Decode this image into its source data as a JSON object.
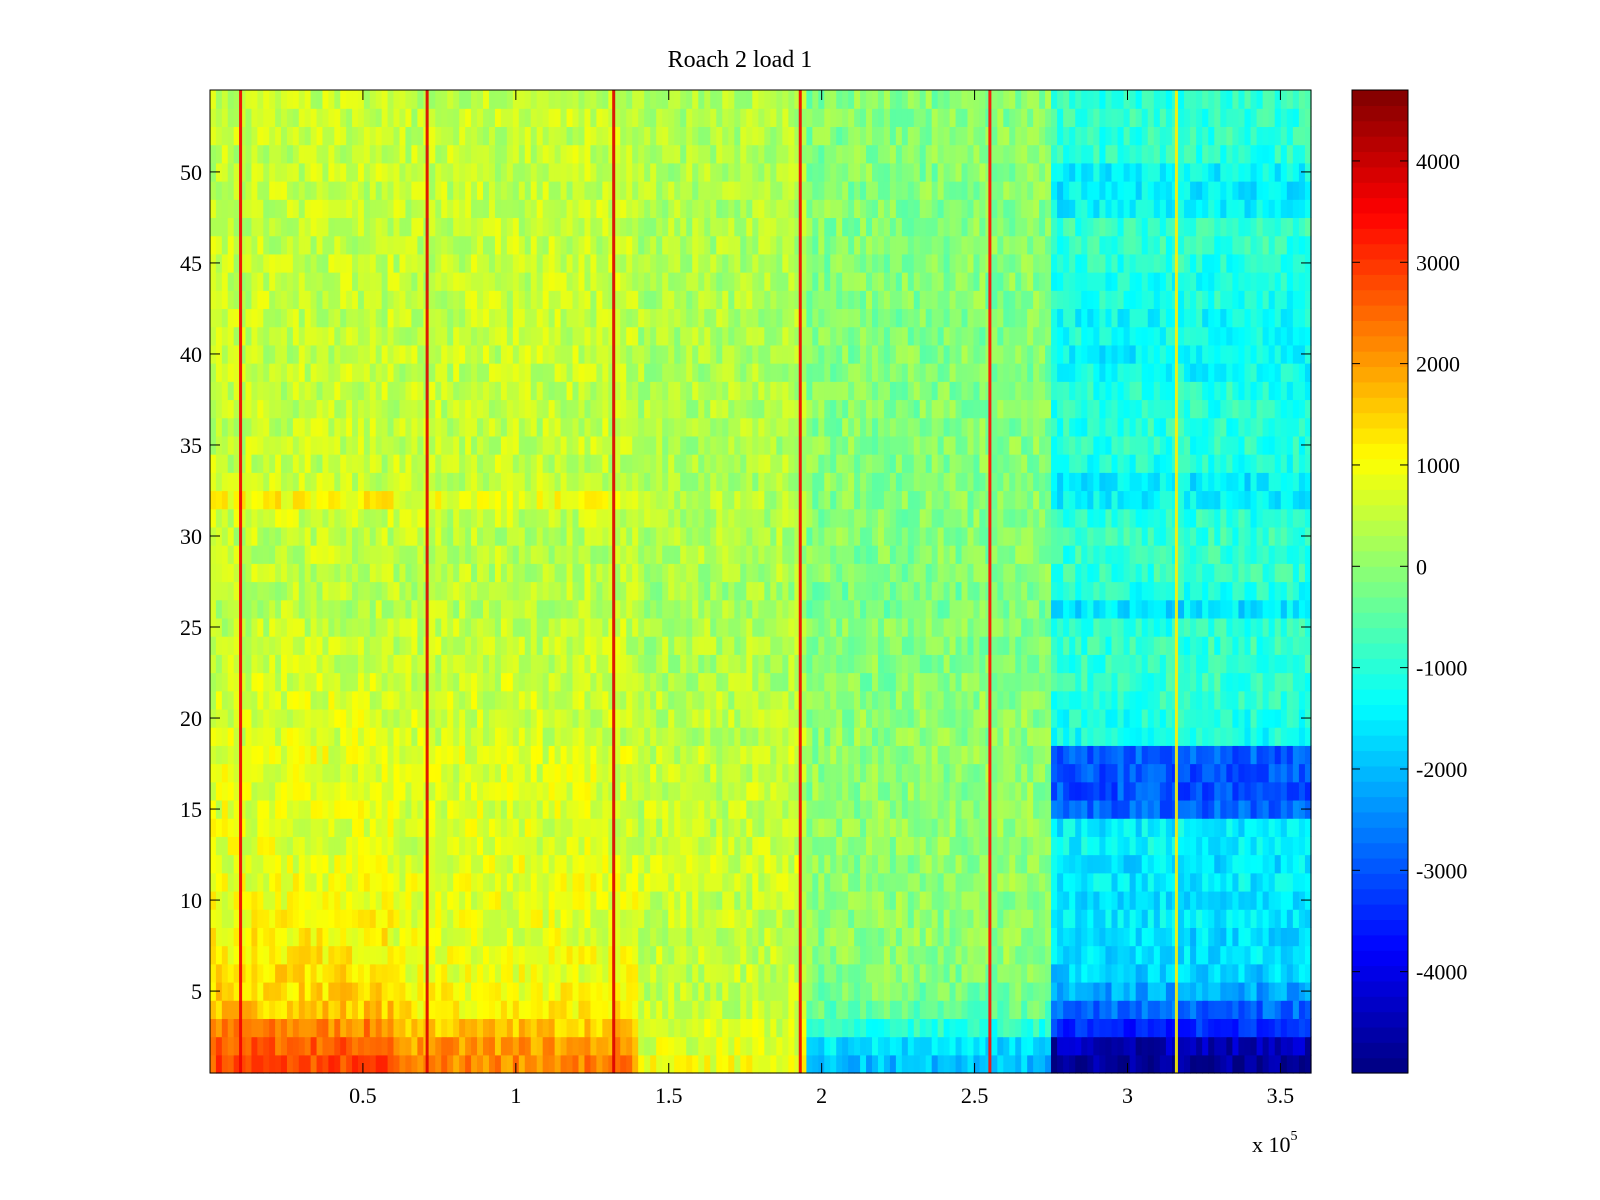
{
  "chart_data": {
    "type": "heatmap",
    "title": "Roach 2 load 1",
    "xlabel": "",
    "ylabel": "",
    "x_multiplier_label": "x 10",
    "x_multiplier_exponent": "5",
    "xlim": [
      0,
      360000
    ],
    "ylim": [
      0.5,
      54.5
    ],
    "rows": 54,
    "colormap": "jet",
    "x_ticks": [
      {
        "value": 50000,
        "label": "0.5"
      },
      {
        "value": 100000,
        "label": "1"
      },
      {
        "value": 150000,
        "label": "1.5"
      },
      {
        "value": 200000,
        "label": "2"
      },
      {
        "value": 250000,
        "label": "2.5"
      },
      {
        "value": 300000,
        "label": "3"
      },
      {
        "value": 350000,
        "label": "3.5"
      }
    ],
    "y_ticks": [
      {
        "value": 5,
        "label": "5"
      },
      {
        "value": 10,
        "label": "10"
      },
      {
        "value": 15,
        "label": "15"
      },
      {
        "value": 20,
        "label": "20"
      },
      {
        "value": 25,
        "label": "25"
      },
      {
        "value": 30,
        "label": "30"
      },
      {
        "value": 35,
        "label": "35"
      },
      {
        "value": 40,
        "label": "40"
      },
      {
        "value": 45,
        "label": "45"
      },
      {
        "value": 50,
        "label": "50"
      }
    ],
    "colorbar": {
      "clim": [
        -5000,
        4700
      ],
      "ticks": [
        {
          "value": 4000,
          "label": "4000"
        },
        {
          "value": 3000,
          "label": "3000"
        },
        {
          "value": 2000,
          "label": "2000"
        },
        {
          "value": 1000,
          "label": "1000"
        },
        {
          "value": 0,
          "label": "0"
        },
        {
          "value": -1000,
          "label": "-1000"
        },
        {
          "value": -2000,
          "label": "-2000"
        },
        {
          "value": -3000,
          "label": "-3000"
        },
        {
          "value": -4000,
          "label": "-4000"
        }
      ]
    },
    "column_segments": [
      {
        "x0": 0,
        "x1": 60000,
        "value_by_row": [
          2800,
          2600,
          2200,
          1600,
          1400,
          1300,
          1200,
          1100,
          1000,
          900,
          900,
          800,
          800,
          800,
          800,
          800,
          800,
          800,
          700,
          700,
          700,
          600,
          600,
          500,
          500,
          400,
          400,
          500,
          500,
          500,
          600,
          1100,
          600,
          500,
          500,
          500,
          500,
          500,
          500,
          500,
          500,
          500,
          500,
          500,
          500,
          500,
          500,
          500,
          500,
          500,
          500,
          500,
          500,
          500
        ]
      },
      {
        "x0": 60000,
        "x1": 140000,
        "value_by_row": [
          2200,
          2000,
          1600,
          1200,
          1000,
          900,
          900,
          800,
          800,
          800,
          800,
          800,
          700,
          700,
          700,
          700,
          700,
          700,
          600,
          600,
          600,
          600,
          500,
          500,
          500,
          400,
          400,
          400,
          400,
          400,
          500,
          900,
          500,
          500,
          500,
          500,
          500,
          500,
          500,
          500,
          500,
          500,
          500,
          500,
          500,
          500,
          500,
          500,
          500,
          500,
          500,
          500,
          500,
          500
        ]
      },
      {
        "x0": 140000,
        "x1": 195000,
        "value_by_row": [
          900,
          700,
          600,
          500,
          500,
          500,
          500,
          500,
          500,
          500,
          600,
          600,
          500,
          500,
          500,
          500,
          500,
          500,
          400,
          400,
          400,
          300,
          300,
          300,
          300,
          200,
          200,
          300,
          300,
          300,
          300,
          400,
          300,
          300,
          300,
          300,
          300,
          300,
          300,
          300,
          300,
          300,
          300,
          300,
          300,
          300,
          300,
          300,
          300,
          300,
          300,
          300,
          300,
          300
        ]
      },
      {
        "x0": 195000,
        "x1": 275000,
        "value_by_row": [
          -2000,
          -1600,
          -1000,
          -400,
          -200,
          -100,
          0,
          0,
          0,
          0,
          0,
          0,
          0,
          0,
          0,
          0,
          0,
          0,
          0,
          0,
          0,
          -100,
          -100,
          -100,
          -100,
          -200,
          -200,
          -100,
          -100,
          -100,
          -100,
          -100,
          -100,
          -100,
          -100,
          -100,
          -100,
          -100,
          -100,
          -100,
          -100,
          -100,
          -100,
          -100,
          -100,
          -100,
          -100,
          -100,
          -100,
          -100,
          -100,
          -100,
          -100,
          -100
        ]
      },
      {
        "x0": 275000,
        "x1": 360000,
        "value_by_row": [
          -4800,
          -4500,
          -3400,
          -2800,
          -2200,
          -1800,
          -1600,
          -1700,
          -1500,
          -1600,
          -1500,
          -1600,
          -1400,
          -1500,
          -2800,
          -3000,
          -3000,
          -2900,
          -1200,
          -1100,
          -1000,
          -900,
          -900,
          -900,
          -1000,
          -1600,
          -1100,
          -900,
          -900,
          -900,
          -1000,
          -1400,
          -1500,
          -1100,
          -1000,
          -1000,
          -1000,
          -1100,
          -1300,
          -1400,
          -1200,
          -1300,
          -1100,
          -1200,
          -1000,
          -900,
          -900,
          -1400,
          -1500,
          -1400,
          -1000,
          -900,
          -900,
          -900
        ]
      }
    ],
    "vertical_stripes": [
      {
        "x": 10000,
        "value": 3600
      },
      {
        "x": 71000,
        "value": 3800
      },
      {
        "x": 132000,
        "value": 3800
      },
      {
        "x": 193000,
        "value": 3600
      },
      {
        "x": 255000,
        "value": 3400
      },
      {
        "x": 316000,
        "value": 1200
      }
    ]
  }
}
